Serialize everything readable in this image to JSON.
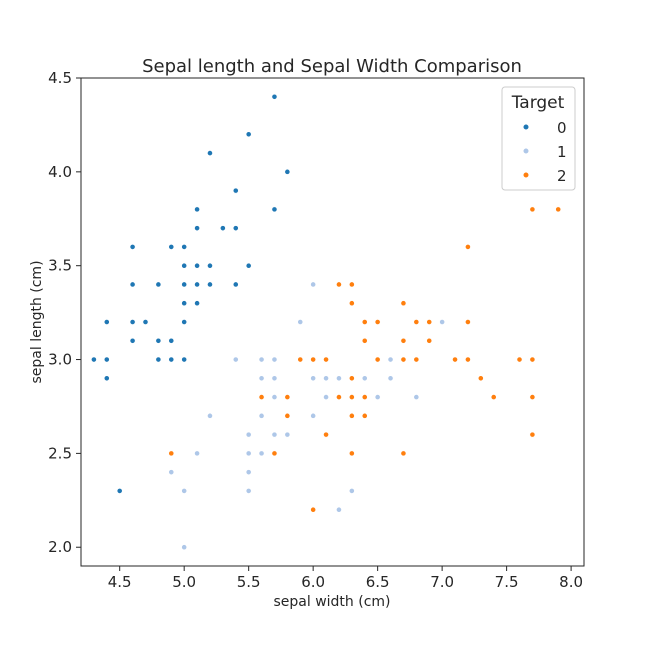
{
  "chart_data": {
    "type": "scatter",
    "title": "Sepal length and Sepal Width Comparison",
    "xlabel": "sepal width (cm)",
    "ylabel": "sepal length (cm)",
    "xlim": [
      4.2,
      8.1
    ],
    "ylim": [
      1.9,
      4.5
    ],
    "xticks": [
      4.5,
      5.0,
      5.5,
      6.0,
      6.5,
      7.0,
      7.5,
      8.0
    ],
    "xtick_labels": [
      "4.5",
      "5.0",
      "5.5",
      "6.0",
      "6.5",
      "7.0",
      "7.5",
      "8.0"
    ],
    "yticks": [
      2.0,
      2.5,
      3.0,
      3.5,
      4.0,
      4.5
    ],
    "ytick_labels": [
      "2.0",
      "2.5",
      "3.0",
      "3.5",
      "4.0",
      "4.5"
    ],
    "grid": false,
    "legend": {
      "title": "Target",
      "position": "top-right"
    },
    "series": [
      {
        "name": "0",
        "color": "#1f77b4",
        "points": [
          [
            5.1,
            3.5
          ],
          [
            4.9,
            3.0
          ],
          [
            4.7,
            3.2
          ],
          [
            4.6,
            3.1
          ],
          [
            5.0,
            3.6
          ],
          [
            5.4,
            3.9
          ],
          [
            4.6,
            3.4
          ],
          [
            5.0,
            3.4
          ],
          [
            4.4,
            2.9
          ],
          [
            4.9,
            3.1
          ],
          [
            5.4,
            3.7
          ],
          [
            4.8,
            3.4
          ],
          [
            4.8,
            3.0
          ],
          [
            4.3,
            3.0
          ],
          [
            5.8,
            4.0
          ],
          [
            5.7,
            4.4
          ],
          [
            5.4,
            3.9
          ],
          [
            5.1,
            3.5
          ],
          [
            5.7,
            3.8
          ],
          [
            5.1,
            3.8
          ],
          [
            5.4,
            3.4
          ],
          [
            5.1,
            3.7
          ],
          [
            4.6,
            3.6
          ],
          [
            5.1,
            3.3
          ],
          [
            4.8,
            3.4
          ],
          [
            5.0,
            3.0
          ],
          [
            5.0,
            3.4
          ],
          [
            5.2,
            3.5
          ],
          [
            5.2,
            3.4
          ],
          [
            4.7,
            3.2
          ],
          [
            4.8,
            3.1
          ],
          [
            5.4,
            3.4
          ],
          [
            5.2,
            4.1
          ],
          [
            5.5,
            4.2
          ],
          [
            4.9,
            3.1
          ],
          [
            5.0,
            3.2
          ],
          [
            5.5,
            3.5
          ],
          [
            4.9,
            3.6
          ],
          [
            4.4,
            3.0
          ],
          [
            5.1,
            3.4
          ],
          [
            5.0,
            3.5
          ],
          [
            4.5,
            2.3
          ],
          [
            4.4,
            3.2
          ],
          [
            5.0,
            3.5
          ],
          [
            5.1,
            3.8
          ],
          [
            4.8,
            3.0
          ],
          [
            5.1,
            3.8
          ],
          [
            4.6,
            3.2
          ],
          [
            5.3,
            3.7
          ],
          [
            5.0,
            3.3
          ]
        ]
      },
      {
        "name": "1",
        "color": "#aec7e8",
        "points": [
          [
            7.0,
            3.2
          ],
          [
            6.4,
            3.2
          ],
          [
            6.9,
            3.1
          ],
          [
            5.5,
            2.3
          ],
          [
            6.5,
            2.8
          ],
          [
            5.7,
            2.8
          ],
          [
            6.3,
            3.3
          ],
          [
            4.9,
            2.4
          ],
          [
            6.6,
            2.9
          ],
          [
            5.2,
            2.7
          ],
          [
            5.0,
            2.0
          ],
          [
            5.9,
            3.0
          ],
          [
            6.0,
            2.2
          ],
          [
            6.1,
            2.9
          ],
          [
            5.6,
            2.9
          ],
          [
            6.7,
            3.1
          ],
          [
            5.6,
            3.0
          ],
          [
            5.8,
            2.7
          ],
          [
            6.2,
            2.2
          ],
          [
            5.6,
            2.5
          ],
          [
            5.9,
            3.2
          ],
          [
            6.1,
            2.8
          ],
          [
            6.3,
            2.5
          ],
          [
            6.1,
            2.8
          ],
          [
            6.4,
            2.9
          ],
          [
            6.6,
            3.0
          ],
          [
            6.8,
            2.8
          ],
          [
            6.7,
            3.0
          ],
          [
            6.0,
            2.9
          ],
          [
            5.7,
            2.6
          ],
          [
            5.5,
            2.4
          ],
          [
            5.5,
            2.4
          ],
          [
            5.8,
            2.7
          ],
          [
            6.0,
            2.7
          ],
          [
            5.4,
            3.0
          ],
          [
            6.0,
            3.4
          ],
          [
            6.7,
            3.1
          ],
          [
            6.3,
            2.3
          ],
          [
            5.6,
            3.0
          ],
          [
            5.5,
            2.5
          ],
          [
            5.5,
            2.6
          ],
          [
            6.1,
            3.0
          ],
          [
            5.8,
            2.6
          ],
          [
            5.0,
            2.3
          ],
          [
            5.6,
            2.7
          ],
          [
            5.7,
            3.0
          ],
          [
            5.7,
            2.9
          ],
          [
            6.2,
            2.9
          ],
          [
            5.1,
            2.5
          ],
          [
            5.7,
            2.8
          ]
        ]
      },
      {
        "name": "2",
        "color": "#ff7f0e",
        "points": [
          [
            6.3,
            3.3
          ],
          [
            5.8,
            2.7
          ],
          [
            7.1,
            3.0
          ],
          [
            6.3,
            2.9
          ],
          [
            6.5,
            3.0
          ],
          [
            7.6,
            3.0
          ],
          [
            4.9,
            2.5
          ],
          [
            7.3,
            2.9
          ],
          [
            6.7,
            2.5
          ],
          [
            7.2,
            3.6
          ],
          [
            6.5,
            3.2
          ],
          [
            6.4,
            2.7
          ],
          [
            6.8,
            3.0
          ],
          [
            5.7,
            2.5
          ],
          [
            5.8,
            2.8
          ],
          [
            6.4,
            3.2
          ],
          [
            6.5,
            3.0
          ],
          [
            7.7,
            3.8
          ],
          [
            7.7,
            2.6
          ],
          [
            6.0,
            2.2
          ],
          [
            6.9,
            3.2
          ],
          [
            5.6,
            2.8
          ],
          [
            7.7,
            2.8
          ],
          [
            6.3,
            2.7
          ],
          [
            6.7,
            3.3
          ],
          [
            7.2,
            3.2
          ],
          [
            6.2,
            2.8
          ],
          [
            6.1,
            3.0
          ],
          [
            6.4,
            2.8
          ],
          [
            7.2,
            3.0
          ],
          [
            7.4,
            2.8
          ],
          [
            7.9,
            3.8
          ],
          [
            6.4,
            2.8
          ],
          [
            6.3,
            2.8
          ],
          [
            6.1,
            2.6
          ],
          [
            7.7,
            3.0
          ],
          [
            6.3,
            3.4
          ],
          [
            6.4,
            3.1
          ],
          [
            6.0,
            3.0
          ],
          [
            6.9,
            3.1
          ],
          [
            6.7,
            3.1
          ],
          [
            6.9,
            3.1
          ],
          [
            5.8,
            2.7
          ],
          [
            6.8,
            3.2
          ],
          [
            6.7,
            3.3
          ],
          [
            6.7,
            3.0
          ],
          [
            6.3,
            2.5
          ],
          [
            6.5,
            3.0
          ],
          [
            6.2,
            3.4
          ],
          [
            5.9,
            3.0
          ]
        ]
      }
    ]
  }
}
